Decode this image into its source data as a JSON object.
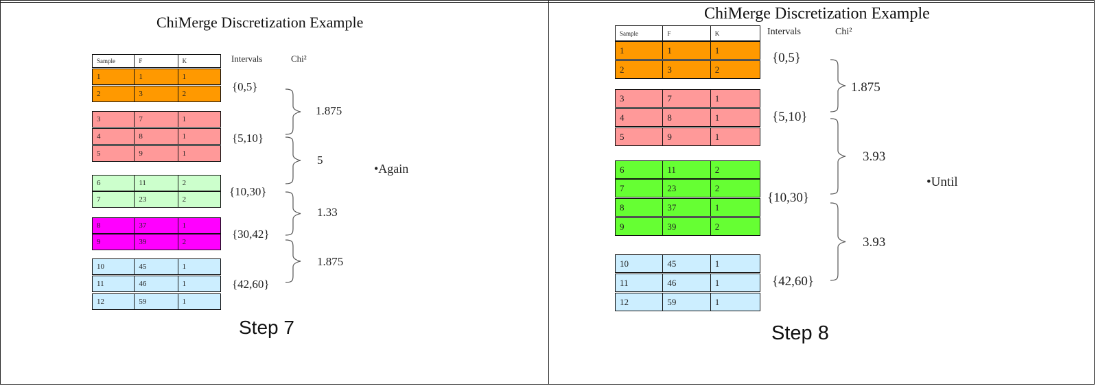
{
  "step7": {
    "title": "ChiMerge Discretization Example",
    "header": {
      "sample": "Sample",
      "f": "F",
      "k": "K"
    },
    "intervals_label": "Intervals",
    "chi_label": "Chi²",
    "rows": [
      {
        "sample": "1",
        "f": "1",
        "k": "1",
        "color": "#FF9900"
      },
      {
        "sample": "2",
        "f": "3",
        "k": "2",
        "color": "#FF9900"
      },
      {
        "sample": "3",
        "f": "7",
        "k": "1",
        "color": "#FF9999"
      },
      {
        "sample": "4",
        "f": "8",
        "k": "1",
        "color": "#FF9999"
      },
      {
        "sample": "5",
        "f": "9",
        "k": "1",
        "color": "#FF9999"
      },
      {
        "sample": "6",
        "f": "11",
        "k": "2",
        "color": "#CCFFCC"
      },
      {
        "sample": "7",
        "f": "23",
        "k": "2",
        "color": "#CCFFCC"
      },
      {
        "sample": "8",
        "f": "37",
        "k": "1",
        "color": "#FF00FF"
      },
      {
        "sample": "9",
        "f": "39",
        "k": "2",
        "color": "#FF00FF"
      },
      {
        "sample": "10",
        "f": "45",
        "k": "1",
        "color": "#CCEEFF"
      },
      {
        "sample": "11",
        "f": "46",
        "k": "1",
        "color": "#CCEEFF"
      },
      {
        "sample": "12",
        "f": "59",
        "k": "1",
        "color": "#CCEEFF"
      }
    ],
    "intervals": [
      "{0,5}",
      "{5,10}",
      "{10,30}",
      "{30,42}",
      "{42,60}"
    ],
    "chi_values": [
      "1.875",
      "5",
      "1.33",
      "1.875"
    ],
    "note": "•Again",
    "caption": "Step 7"
  },
  "step8": {
    "title": "ChiMerge Discretization Example",
    "header": {
      "sample": "Sample",
      "f": "F",
      "k": "K"
    },
    "intervals_label": "Intervals",
    "chi_label": "Chi²",
    "rows": [
      {
        "sample": "1",
        "f": "1",
        "k": "1",
        "color": "#FF9900"
      },
      {
        "sample": "2",
        "f": "3",
        "k": "2",
        "color": "#FF9900"
      },
      {
        "sample": "3",
        "f": "7",
        "k": "1",
        "color": "#FF9999"
      },
      {
        "sample": "4",
        "f": "8",
        "k": "1",
        "color": "#FF9999"
      },
      {
        "sample": "5",
        "f": "9",
        "k": "1",
        "color": "#FF9999"
      },
      {
        "sample": "6",
        "f": "11",
        "k": "2",
        "color": "#66FF33"
      },
      {
        "sample": "7",
        "f": "23",
        "k": "2",
        "color": "#66FF33"
      },
      {
        "sample": "8",
        "f": "37",
        "k": "1",
        "color": "#66FF33"
      },
      {
        "sample": "9",
        "f": "39",
        "k": "2",
        "color": "#66FF33"
      },
      {
        "sample": "10",
        "f": "45",
        "k": "1",
        "color": "#CCEEFF"
      },
      {
        "sample": "11",
        "f": "46",
        "k": "1",
        "color": "#CCEEFF"
      },
      {
        "sample": "12",
        "f": "59",
        "k": "1",
        "color": "#CCEEFF"
      }
    ],
    "intervals": [
      "{0,5}",
      "{5,10}",
      "{10,30}",
      "{42,60}"
    ],
    "chi_values": [
      "1.875",
      "3.93",
      "3.93"
    ],
    "note": "•Until",
    "caption": "Step 8"
  }
}
